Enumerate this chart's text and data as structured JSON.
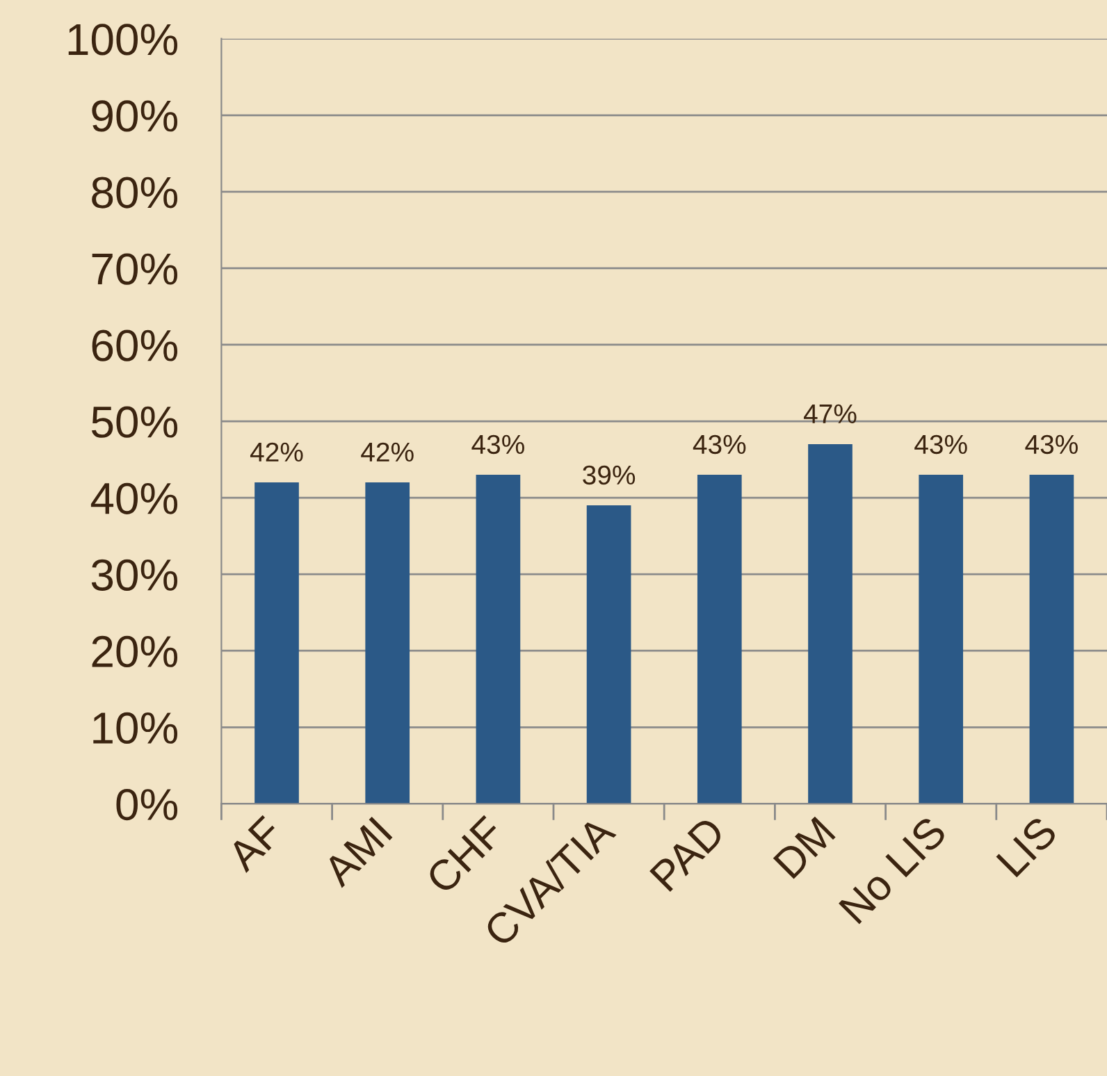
{
  "chart_data": {
    "type": "bar",
    "categories": [
      "AF",
      "AMI",
      "CHF",
      "CVA/TIA",
      "PAD",
      "DM",
      "No LIS",
      "LIS"
    ],
    "values": [
      42,
      42,
      43,
      39,
      43,
      47,
      43,
      43
    ],
    "value_labels": [
      "42%",
      "42%",
      "43%",
      "39%",
      "43%",
      "47%",
      "43%",
      "43%"
    ],
    "color": "#2b5987",
    "ylim": [
      0,
      100
    ],
    "yticks": [
      {
        "value": 0,
        "label": "0%"
      },
      {
        "value": 10,
        "label": "10%"
      },
      {
        "value": 20,
        "label": "20%"
      },
      {
        "value": 30,
        "label": "30%"
      },
      {
        "value": 40,
        "label": "40%"
      },
      {
        "value": 50,
        "label": "50%"
      },
      {
        "value": 60,
        "label": "60%"
      },
      {
        "value": 70,
        "label": "70%"
      },
      {
        "value": 80,
        "label": "80%"
      },
      {
        "value": 90,
        "label": "90%"
      },
      {
        "value": 100,
        "label": "100%"
      }
    ],
    "grid": "y",
    "legend": false
  }
}
